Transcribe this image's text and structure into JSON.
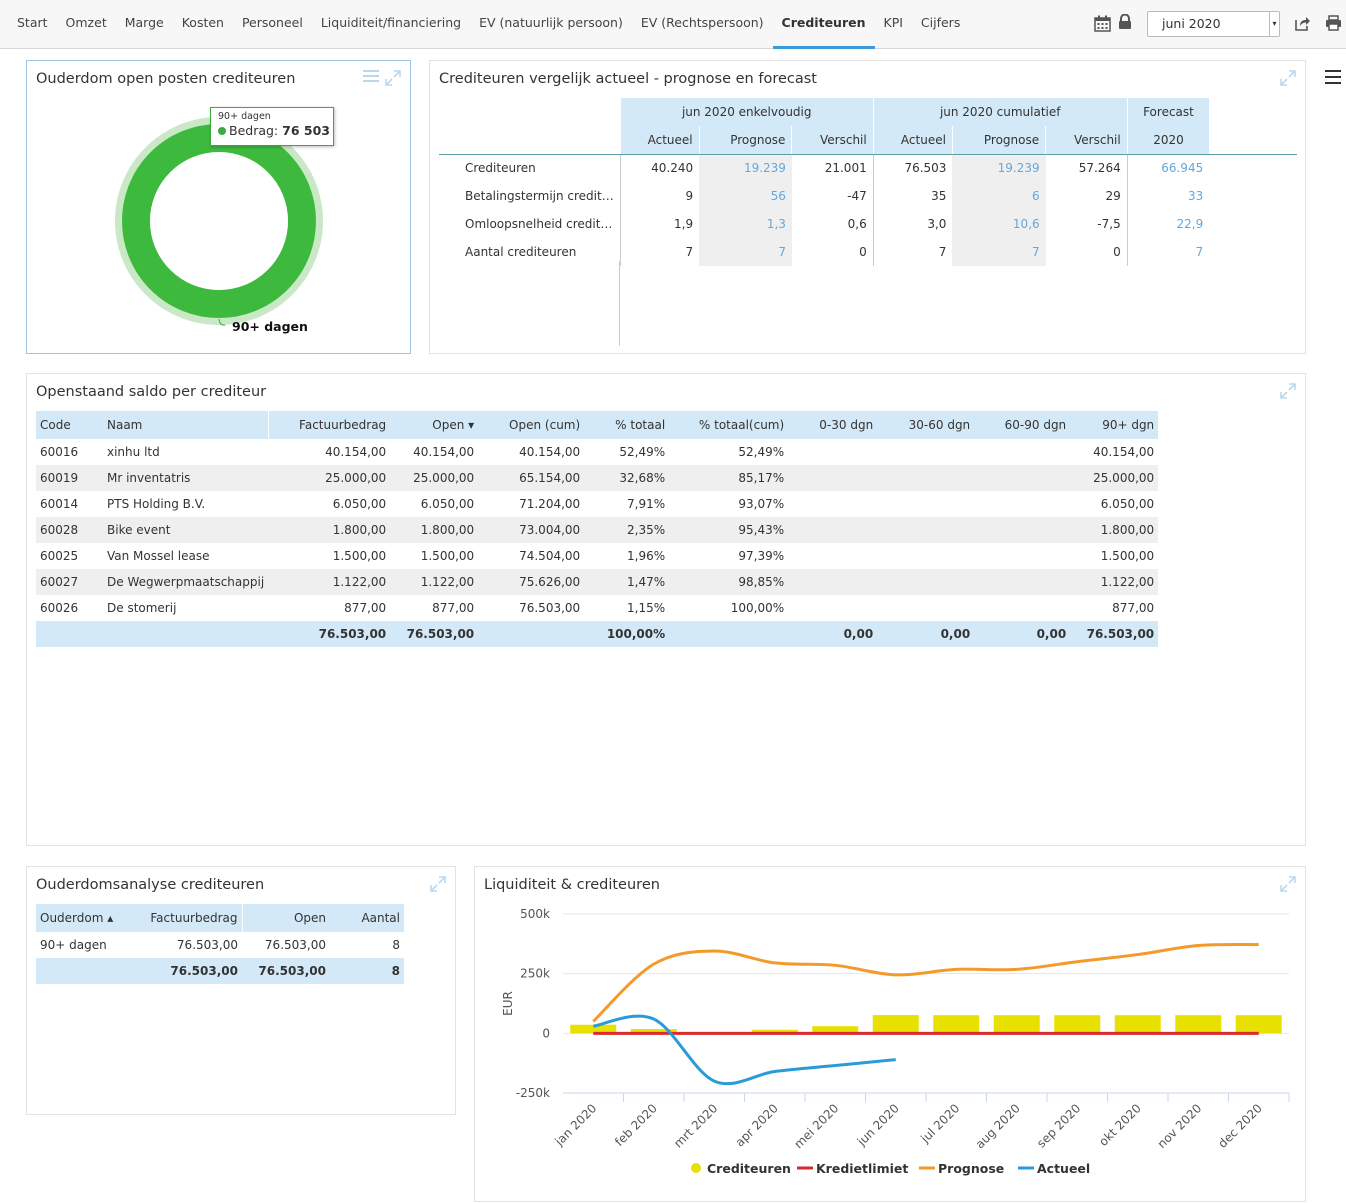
{
  "nav": {
    "tabs": [
      {
        "label": "Start",
        "active": false
      },
      {
        "label": "Omzet",
        "active": false
      },
      {
        "label": "Marge",
        "active": false
      },
      {
        "label": "Kosten",
        "active": false
      },
      {
        "label": "Personeel",
        "active": false
      },
      {
        "label": "Liquiditeit/financiering",
        "active": false
      },
      {
        "label": "EV (natuurlijk persoon)",
        "active": false
      },
      {
        "label": "EV (Rechtspersoon)",
        "active": false
      },
      {
        "label": "Crediteuren",
        "active": true
      },
      {
        "label": "KPI",
        "active": false
      },
      {
        "label": "Cijfers",
        "active": false
      }
    ],
    "month": "juni 2020",
    "icons": [
      "calendar-icon",
      "lock-icon",
      "share-icon",
      "print-icon",
      "hamburger-menu-icon"
    ]
  },
  "donut_panel": {
    "title": "Ouderdom open posten crediteuren",
    "tooltip_category": "90+ dagen",
    "tooltip_label": "Bedrag:",
    "tooltip_value": "76 503",
    "slice_label": "90+ dagen",
    "color": "#3dba3d"
  },
  "compare_panel": {
    "title": "Crediteuren vergelijk actueel - prognose en forecast",
    "groups": [
      "jun 2020 enkelvoudig",
      "jun 2020 cumulatief",
      "Forecast"
    ],
    "subheaders": [
      "Actueel",
      "Prognose",
      "Verschil",
      "Actueel",
      "Prognose",
      "Verschil",
      "2020"
    ],
    "rows": [
      {
        "label": "Crediteuren",
        "values": [
          "40.240",
          "19.239",
          "21.001",
          "76.503",
          "19.239",
          "57.264",
          "66.945"
        ]
      },
      {
        "label": "Betalingstermijn credit…",
        "values": [
          "9",
          "56",
          "-47",
          "35",
          "6",
          "29",
          "33"
        ]
      },
      {
        "label": "Omloopsnelheid credit…",
        "values": [
          "1,9",
          "1,3",
          "0,6",
          "3,0",
          "10,6",
          "-7,5",
          "22,9"
        ]
      },
      {
        "label": "Aantal crediteuren",
        "values": [
          "7",
          "7",
          "0",
          "7",
          "7",
          "0",
          "7"
        ]
      }
    ]
  },
  "saldo_panel": {
    "title": "Openstaand saldo per crediteur",
    "columns": [
      "Code",
      "Naam",
      "Factuurbedrag",
      "Open",
      "Open (cum)",
      "% totaal",
      "% totaal(cum)",
      "0-30 dgn",
      "30-60 dgn",
      "60-90 dgn",
      "90+ dgn"
    ],
    "rows": [
      [
        "60016",
        "xinhu ltd",
        "40.154,00",
        "40.154,00",
        "40.154,00",
        "52,49%",
        "52,49%",
        "",
        "",
        "",
        "40.154,00"
      ],
      [
        "60019",
        "Mr inventatris",
        "25.000,00",
        "25.000,00",
        "65.154,00",
        "32,68%",
        "85,17%",
        "",
        "",
        "",
        "25.000,00"
      ],
      [
        "60014",
        "PTS Holding B.V.",
        "6.050,00",
        "6.050,00",
        "71.204,00",
        "7,91%",
        "93,07%",
        "",
        "",
        "",
        "6.050,00"
      ],
      [
        "60028",
        "Bike event",
        "1.800,00",
        "1.800,00",
        "73.004,00",
        "2,35%",
        "95,43%",
        "",
        "",
        "",
        "1.800,00"
      ],
      [
        "60025",
        "Van Mossel lease",
        "1.500,00",
        "1.500,00",
        "74.504,00",
        "1,96%",
        "97,39%",
        "",
        "",
        "",
        "1.500,00"
      ],
      [
        "60027",
        "De Wegwerpmaatschappij",
        "1.122,00",
        "1.122,00",
        "75.626,00",
        "1,47%",
        "98,85%",
        "",
        "",
        "",
        "1.122,00"
      ],
      [
        "60026",
        "De stomerij",
        "877,00",
        "877,00",
        "76.503,00",
        "1,15%",
        "100,00%",
        "",
        "",
        "",
        "877,00"
      ]
    ],
    "totals": [
      "",
      "",
      "76.503,00",
      "76.503,00",
      "",
      "100,00%",
      "",
      "0,00",
      "0,00",
      "0,00",
      "76.503,00"
    ]
  },
  "aging_panel": {
    "title": "Ouderdomsanalyse crediteuren",
    "columns": [
      "Ouderdom",
      "Factuurbedrag",
      "Open",
      "Aantal"
    ],
    "rows": [
      [
        "90+ dagen",
        "76.503,00",
        "76.503,00",
        "8"
      ]
    ],
    "totals": [
      "",
      "76.503,00",
      "76.503,00",
      "8"
    ]
  },
  "liq_panel": {
    "title": "Liquiditeit & crediteuren"
  },
  "chart_data": {
    "type": "line",
    "title": "Liquiditeit & crediteuren",
    "ylabel": "EUR",
    "ylim": [
      -250000,
      500000
    ],
    "yticks": [
      "500k",
      "250k",
      "0",
      "-250k"
    ],
    "ytick_values": [
      500000,
      250000,
      0,
      -250000
    ],
    "categories": [
      "jan 2020",
      "feb 2020",
      "mrt 2020",
      "apr 2020",
      "mei 2020",
      "jun 2020",
      "jul 2020",
      "aug 2020",
      "sep 2020",
      "okt 2020",
      "nov 2020",
      "dec 2020"
    ],
    "grid": true,
    "legend_position": "bottom",
    "series": [
      {
        "name": "Crediteuren",
        "kind": "bar",
        "color": "#e8e000",
        "values": [
          36000,
          18000,
          null,
          15000,
          30000,
          76503,
          76000,
          76000,
          76000,
          76000,
          76000,
          76000
        ]
      },
      {
        "name": "Kredietlimiet",
        "kind": "line",
        "color": "#d92b2b",
        "values": [
          0,
          0,
          0,
          0,
          0,
          0,
          0,
          0,
          0,
          0,
          0,
          0
        ]
      },
      {
        "name": "Prognose",
        "kind": "line",
        "color": "#f59a2a",
        "values": [
          50000,
          290000,
          345000,
          295000,
          285000,
          245000,
          268000,
          268000,
          300000,
          330000,
          368000,
          372000
        ]
      },
      {
        "name": "Actueel",
        "kind": "line",
        "color": "#2a9bd9",
        "values": [
          30000,
          60000,
          -200000,
          -160000,
          -135000,
          -110000,
          null,
          null,
          null,
          null,
          null,
          null
        ]
      }
    ]
  }
}
